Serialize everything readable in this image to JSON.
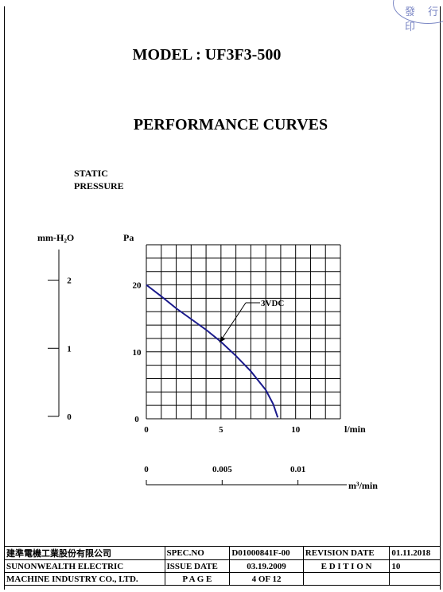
{
  "stamp_text": "發 行 印",
  "model_title": "MODEL : UF3F3-500",
  "chart_title": "PERFORMANCE  CURVES",
  "y_label_line1": "STATIC",
  "y_label_line2": "PRESSURE",
  "left_axis_unit": "mm-H₂O",
  "chart_data": {
    "type": "line",
    "xlabel": "l/min",
    "ylabel": "Pa",
    "xlim": [
      0,
      13
    ],
    "ylim": [
      0,
      26
    ],
    "x_ticks": [
      "0",
      "5",
      "10"
    ],
    "y_ticks": [
      "0",
      "10",
      "20"
    ],
    "grid": true,
    "series": [
      {
        "name": "3VDC",
        "x": [
          0,
          1,
          2,
          3,
          4,
          5,
          6,
          7,
          8,
          8.5,
          8.8
        ],
        "y": [
          20,
          18.3,
          16.5,
          14.9,
          13.3,
          11.5,
          9.4,
          7.1,
          4.3,
          2.2,
          0.2
        ]
      }
    ],
    "secondary_x_axis": {
      "label": "m³/min",
      "ticks": [
        "0",
        "0.005",
        "0.01"
      ],
      "tick_values": [
        0,
        0.005,
        0.01
      ]
    },
    "secondary_y_axis": {
      "label": "mm-H₂O",
      "ticks": [
        "0",
        "1",
        "2"
      ],
      "tick_values": [
        0,
        1,
        2
      ]
    }
  },
  "footer": {
    "company_cn": "建準電機工業股份有限公司",
    "company_en1": "SUNONWEALTH  ELECTRIC",
    "company_en2": "MACHINE  INDUSTRY  CO., LTD.",
    "spec_no_label": "SPEC.NO",
    "spec_no": "D01000841F-00",
    "revision_date_label": "REVISION DATE",
    "revision_date": "01.11.2018",
    "issue_date_label": "ISSUE DATE",
    "issue_date": "03.19.2009",
    "edition_label": "E D I T I O N",
    "edition": "10",
    "page_label": "P A G E",
    "page": "4  OF  12"
  }
}
